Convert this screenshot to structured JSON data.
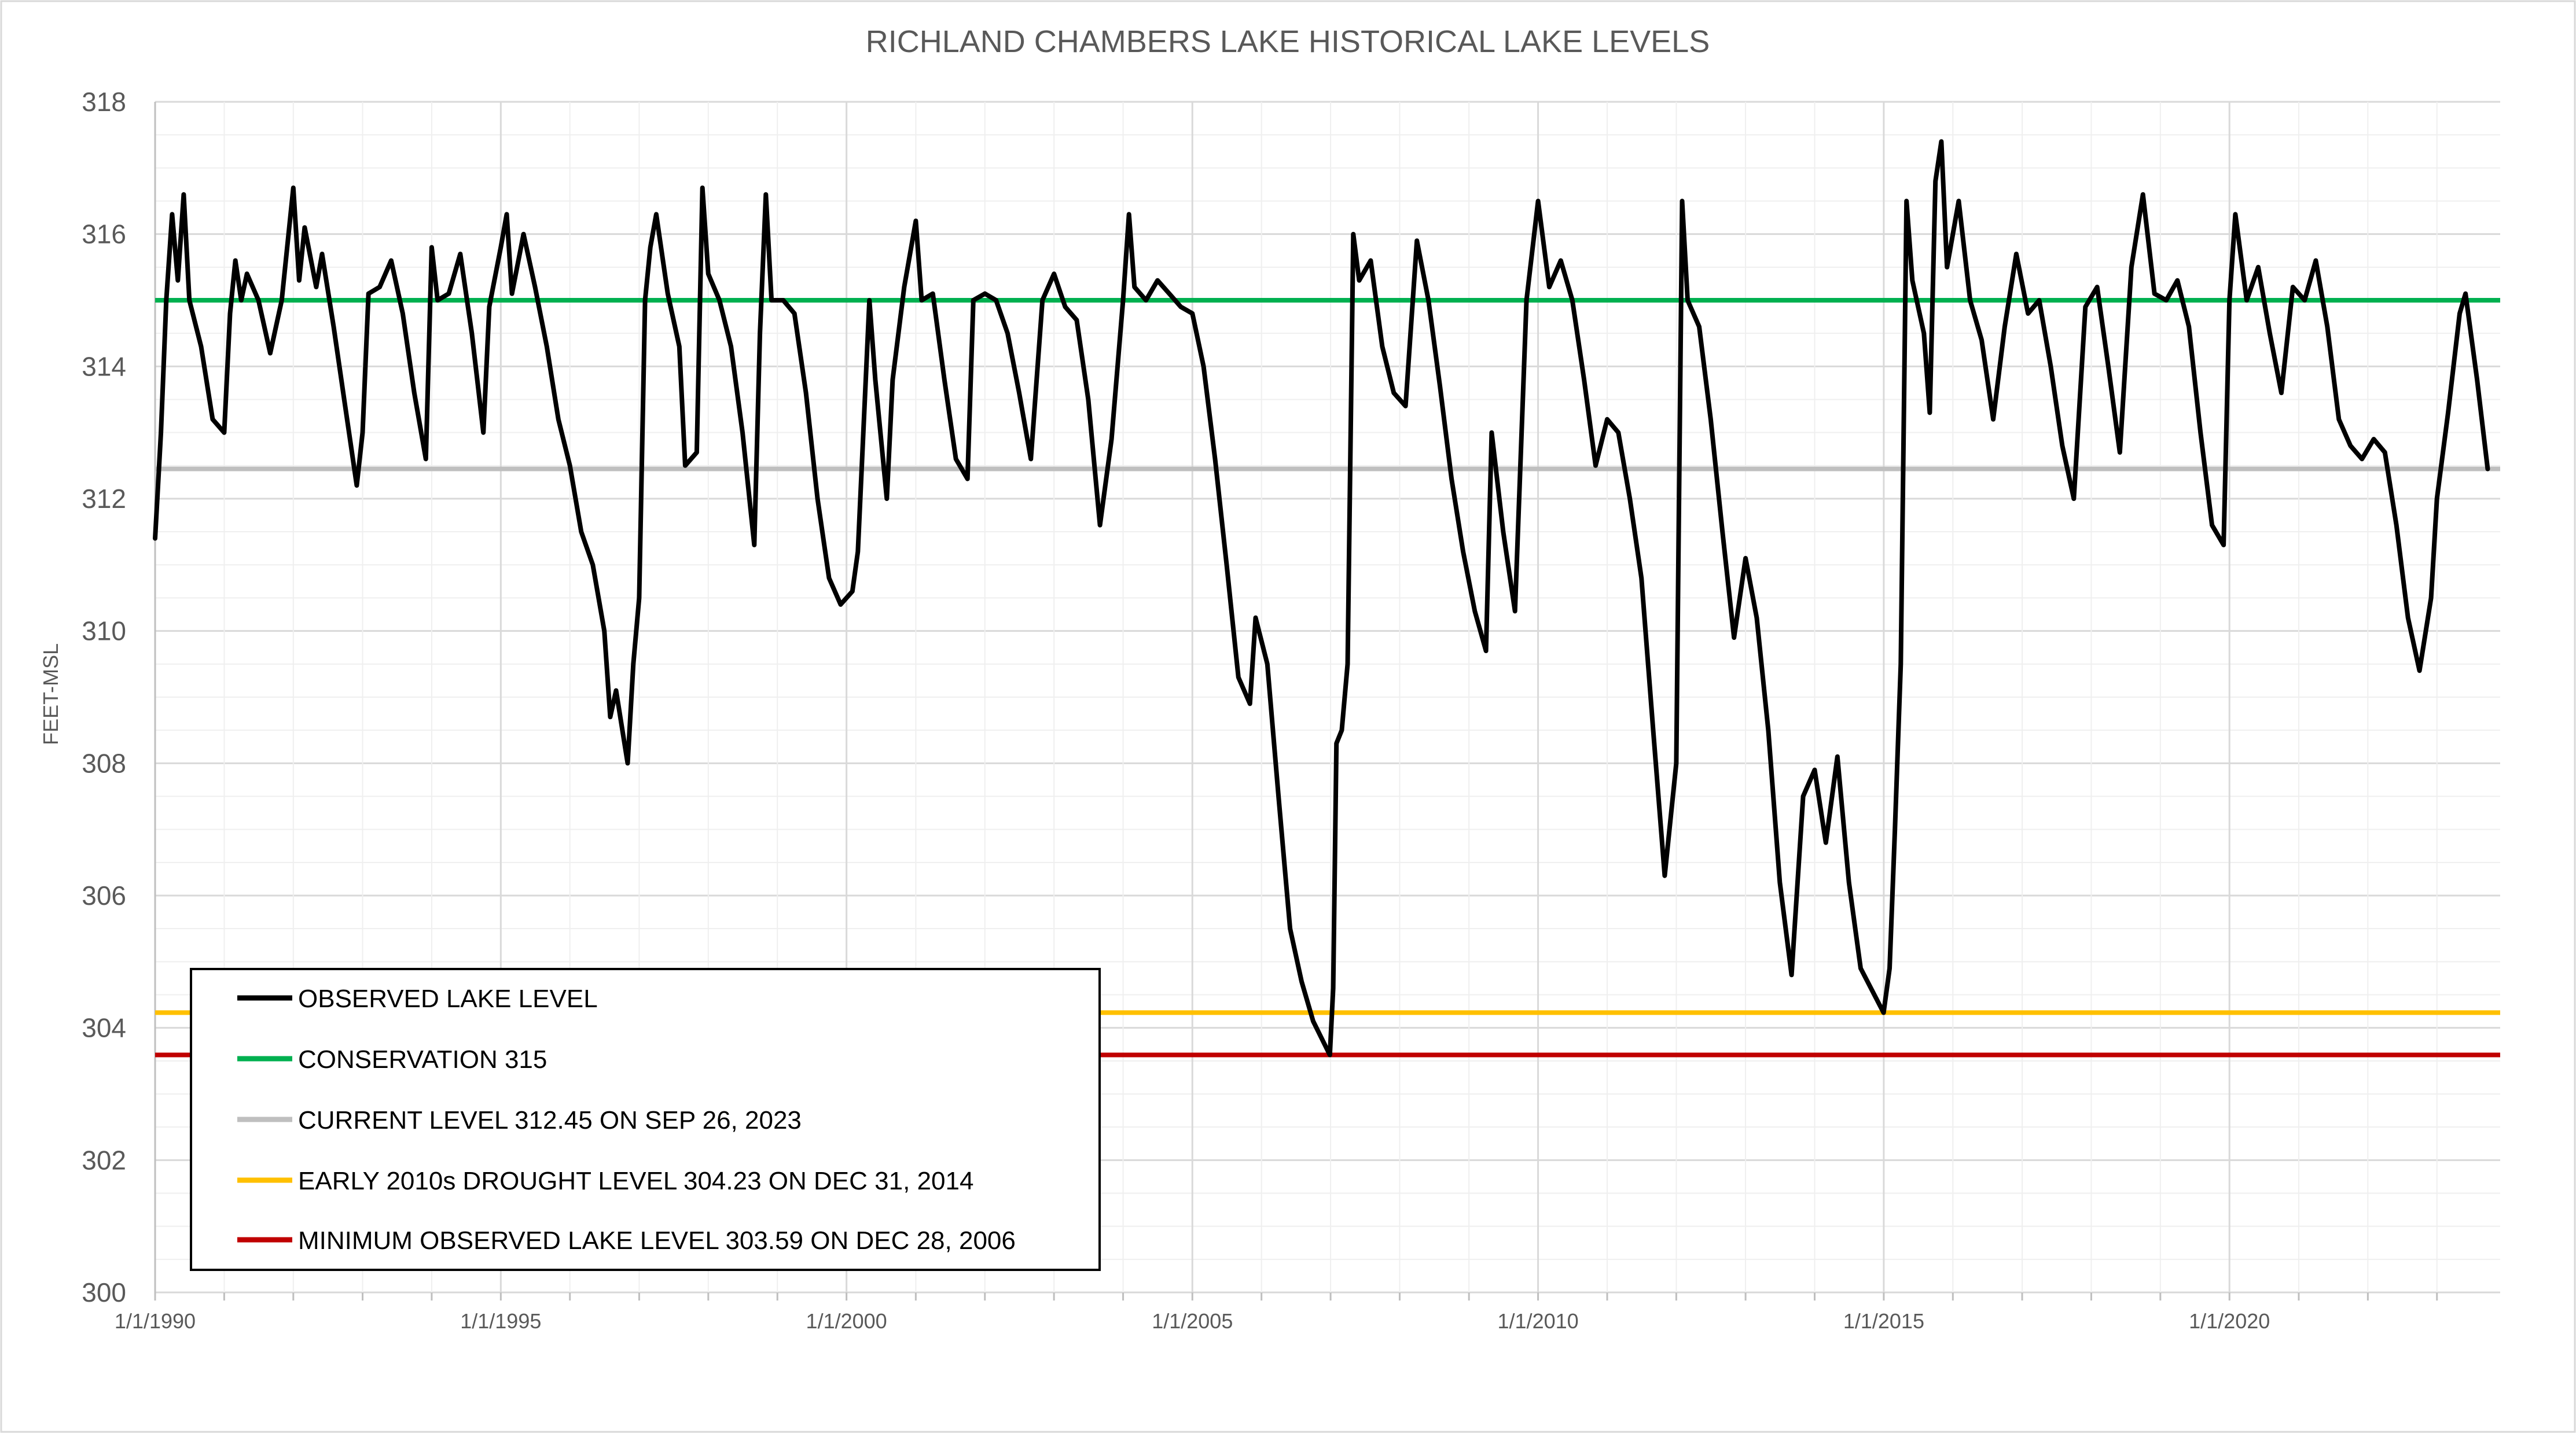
{
  "chart_data": {
    "type": "line",
    "title": "RICHLAND CHAMBERS LAKE HISTORICAL LAKE LEVELS",
    "xlabel": "",
    "ylabel": "FEET-MSL",
    "xlim": [
      "1990-01-01",
      "2023-12-01"
    ],
    "ylim": [
      300,
      318
    ],
    "y_ticks": [
      300,
      302,
      304,
      306,
      308,
      310,
      312,
      314,
      316,
      318
    ],
    "x_ticks": [
      {
        "date": "1990-01-01",
        "label": "1/1/1990"
      },
      {
        "date": "1995-01-01",
        "label": "1/1/1995"
      },
      {
        "date": "2000-01-01",
        "label": "1/1/2000"
      },
      {
        "date": "2005-01-01",
        "label": "1/1/2005"
      },
      {
        "date": "2010-01-01",
        "label": "1/1/2010"
      },
      {
        "date": "2015-01-01",
        "label": "1/1/2015"
      },
      {
        "date": "2020-01-01",
        "label": "1/1/2020"
      }
    ],
    "grid": true,
    "legend_position": "bottom-left",
    "series": [
      {
        "name": "OBSERVED LAKE LEVEL",
        "color": "#000000",
        "kind": "line",
        "points": [
          [
            "1990-01-01",
            311.4
          ],
          [
            "1990-02-01",
            313.0
          ],
          [
            "1990-03-01",
            315.0
          ],
          [
            "1990-04-01",
            316.3
          ],
          [
            "1990-05-01",
            315.3
          ],
          [
            "1990-06-01",
            316.6
          ],
          [
            "1990-07-01",
            315.0
          ],
          [
            "1990-09-01",
            314.3
          ],
          [
            "1990-11-01",
            313.2
          ],
          [
            "1991-01-01",
            313.0
          ],
          [
            "1991-02-01",
            314.8
          ],
          [
            "1991-03-01",
            315.6
          ],
          [
            "1991-04-01",
            315.0
          ],
          [
            "1991-05-01",
            315.4
          ],
          [
            "1991-07-01",
            315.0
          ],
          [
            "1991-09-01",
            314.2
          ],
          [
            "1991-11-01",
            315.0
          ],
          [
            "1992-01-01",
            316.7
          ],
          [
            "1992-02-01",
            315.3
          ],
          [
            "1992-03-01",
            316.1
          ],
          [
            "1992-05-01",
            315.2
          ],
          [
            "1992-06-01",
            315.7
          ],
          [
            "1992-08-01",
            314.6
          ],
          [
            "1992-10-01",
            313.4
          ],
          [
            "1992-12-01",
            312.2
          ],
          [
            "1993-01-01",
            313.0
          ],
          [
            "1993-02-01",
            315.1
          ],
          [
            "1993-04-01",
            315.2
          ],
          [
            "1993-06-01",
            315.6
          ],
          [
            "1993-08-01",
            314.8
          ],
          [
            "1993-10-01",
            313.6
          ],
          [
            "1993-12-01",
            312.6
          ],
          [
            "1994-01-01",
            315.8
          ],
          [
            "1994-02-01",
            315.0
          ],
          [
            "1994-04-01",
            315.1
          ],
          [
            "1994-06-01",
            315.7
          ],
          [
            "1994-08-01",
            314.5
          ],
          [
            "1994-10-01",
            313.0
          ],
          [
            "1994-11-01",
            314.9
          ],
          [
            "1995-01-01",
            315.8
          ],
          [
            "1995-02-01",
            316.3
          ],
          [
            "1995-03-01",
            315.1
          ],
          [
            "1995-05-01",
            316.0
          ],
          [
            "1995-07-01",
            315.2
          ],
          [
            "1995-09-01",
            314.3
          ],
          [
            "1995-11-01",
            313.2
          ],
          [
            "1996-01-01",
            312.5
          ],
          [
            "1996-03-01",
            311.5
          ],
          [
            "1996-05-01",
            311.0
          ],
          [
            "1996-07-01",
            310.0
          ],
          [
            "1996-08-01",
            308.7
          ],
          [
            "1996-09-01",
            309.1
          ],
          [
            "1996-11-01",
            308.0
          ],
          [
            "1996-12-01",
            309.5
          ],
          [
            "1997-01-01",
            310.5
          ],
          [
            "1997-02-01",
            315.0
          ],
          [
            "1997-03-01",
            315.8
          ],
          [
            "1997-04-01",
            316.3
          ],
          [
            "1997-06-01",
            315.1
          ],
          [
            "1997-08-01",
            314.3
          ],
          [
            "1997-09-01",
            312.5
          ],
          [
            "1997-11-01",
            312.7
          ],
          [
            "1997-12-01",
            316.7
          ],
          [
            "1998-01-01",
            315.4
          ],
          [
            "1998-03-01",
            315.0
          ],
          [
            "1998-05-01",
            314.3
          ],
          [
            "1998-07-01",
            313.0
          ],
          [
            "1998-09-01",
            311.3
          ],
          [
            "1998-10-01",
            314.5
          ],
          [
            "1998-11-01",
            316.6
          ],
          [
            "1998-12-01",
            315.0
          ],
          [
            "1999-02-01",
            315.0
          ],
          [
            "1999-04-01",
            314.8
          ],
          [
            "1999-06-01",
            313.6
          ],
          [
            "1999-08-01",
            312.0
          ],
          [
            "1999-10-01",
            310.8
          ],
          [
            "1999-12-01",
            310.4
          ],
          [
            "2000-02-01",
            310.6
          ],
          [
            "2000-03-01",
            311.2
          ],
          [
            "2000-05-01",
            315.0
          ],
          [
            "2000-06-01",
            313.8
          ],
          [
            "2000-08-01",
            312.0
          ],
          [
            "2000-09-01",
            313.8
          ],
          [
            "2000-11-01",
            315.2
          ],
          [
            "2001-01-01",
            316.2
          ],
          [
            "2001-02-01",
            315.0
          ],
          [
            "2001-04-01",
            315.1
          ],
          [
            "2001-06-01",
            313.8
          ],
          [
            "2001-08-01",
            312.6
          ],
          [
            "2001-10-01",
            312.3
          ],
          [
            "2001-11-01",
            315.0
          ],
          [
            "2002-01-01",
            315.1
          ],
          [
            "2002-03-01",
            315.0
          ],
          [
            "2002-05-01",
            314.5
          ],
          [
            "2002-07-01",
            313.6
          ],
          [
            "2002-09-01",
            312.6
          ],
          [
            "2002-11-01",
            315.0
          ],
          [
            "2003-01-01",
            315.4
          ],
          [
            "2003-03-01",
            314.9
          ],
          [
            "2003-05-01",
            314.7
          ],
          [
            "2003-07-01",
            313.5
          ],
          [
            "2003-09-01",
            311.6
          ],
          [
            "2003-11-01",
            312.9
          ],
          [
            "2004-01-01",
            315.0
          ],
          [
            "2004-02-01",
            316.3
          ],
          [
            "2004-03-01",
            315.2
          ],
          [
            "2004-05-01",
            315.0
          ],
          [
            "2004-07-01",
            315.3
          ],
          [
            "2004-09-01",
            315.1
          ],
          [
            "2004-11-01",
            314.9
          ],
          [
            "2005-01-01",
            314.8
          ],
          [
            "2005-03-01",
            314.0
          ],
          [
            "2005-05-01",
            312.6
          ],
          [
            "2005-07-01",
            311.0
          ],
          [
            "2005-09-01",
            309.3
          ],
          [
            "2005-11-01",
            308.9
          ],
          [
            "2005-12-01",
            310.2
          ],
          [
            "2006-02-01",
            309.5
          ],
          [
            "2006-04-01",
            307.5
          ],
          [
            "2006-06-01",
            305.5
          ],
          [
            "2006-08-01",
            304.7
          ],
          [
            "2006-10-01",
            304.1
          ],
          [
            "2006-12-28",
            303.59
          ],
          [
            "2007-01-15",
            304.6
          ],
          [
            "2007-02-01",
            308.3
          ],
          [
            "2007-03-01",
            308.5
          ],
          [
            "2007-04-01",
            309.5
          ],
          [
            "2007-05-01",
            316.0
          ],
          [
            "2007-06-01",
            315.3
          ],
          [
            "2007-08-01",
            315.6
          ],
          [
            "2007-10-01",
            314.3
          ],
          [
            "2007-12-01",
            313.6
          ],
          [
            "2008-02-01",
            313.4
          ],
          [
            "2008-04-01",
            315.9
          ],
          [
            "2008-06-01",
            315.0
          ],
          [
            "2008-08-01",
            313.7
          ],
          [
            "2008-10-01",
            312.3
          ],
          [
            "2008-12-01",
            311.2
          ],
          [
            "2009-02-01",
            310.3
          ],
          [
            "2009-04-01",
            309.7
          ],
          [
            "2009-05-01",
            313.0
          ],
          [
            "2009-07-01",
            311.5
          ],
          [
            "2009-09-01",
            310.3
          ],
          [
            "2009-11-01",
            315.0
          ],
          [
            "2010-01-01",
            316.5
          ],
          [
            "2010-03-01",
            315.2
          ],
          [
            "2010-05-01",
            315.6
          ],
          [
            "2010-07-01",
            315.0
          ],
          [
            "2010-09-01",
            313.8
          ],
          [
            "2010-11-01",
            312.5
          ],
          [
            "2011-01-01",
            313.2
          ],
          [
            "2011-03-01",
            313.0
          ],
          [
            "2011-05-01",
            312.0
          ],
          [
            "2011-07-01",
            310.8
          ],
          [
            "2011-09-01",
            308.5
          ],
          [
            "2011-11-01",
            306.3
          ],
          [
            "2012-01-01",
            308.0
          ],
          [
            "2012-02-01",
            316.5
          ],
          [
            "2012-03-01",
            315.0
          ],
          [
            "2012-05-01",
            314.6
          ],
          [
            "2012-07-01",
            313.2
          ],
          [
            "2012-09-01",
            311.5
          ],
          [
            "2012-11-01",
            309.9
          ],
          [
            "2013-01-01",
            311.1
          ],
          [
            "2013-03-01",
            310.2
          ],
          [
            "2013-05-01",
            308.5
          ],
          [
            "2013-07-01",
            306.2
          ],
          [
            "2013-09-01",
            304.8
          ],
          [
            "2013-11-01",
            307.5
          ],
          [
            "2014-01-01",
            307.9
          ],
          [
            "2014-03-01",
            306.8
          ],
          [
            "2014-05-01",
            308.1
          ],
          [
            "2014-07-01",
            306.2
          ],
          [
            "2014-09-01",
            304.9
          ],
          [
            "2014-12-31",
            304.23
          ],
          [
            "2015-02-01",
            304.9
          ],
          [
            "2015-03-01",
            307.0
          ],
          [
            "2015-04-01",
            309.5
          ],
          [
            "2015-05-01",
            316.5
          ],
          [
            "2015-06-01",
            315.3
          ],
          [
            "2015-08-01",
            314.5
          ],
          [
            "2015-09-01",
            313.3
          ],
          [
            "2015-10-01",
            316.8
          ],
          [
            "2015-11-01",
            317.4
          ],
          [
            "2015-12-01",
            315.5
          ],
          [
            "2016-02-01",
            316.5
          ],
          [
            "2016-04-01",
            315.0
          ],
          [
            "2016-06-01",
            314.4
          ],
          [
            "2016-08-01",
            313.2
          ],
          [
            "2016-10-01",
            314.6
          ],
          [
            "2016-12-01",
            315.7
          ],
          [
            "2017-02-01",
            314.8
          ],
          [
            "2017-04-01",
            315.0
          ],
          [
            "2017-06-01",
            314.0
          ],
          [
            "2017-08-01",
            312.8
          ],
          [
            "2017-10-01",
            312.0
          ],
          [
            "2017-12-01",
            314.9
          ],
          [
            "2018-02-01",
            315.2
          ],
          [
            "2018-04-01",
            314.0
          ],
          [
            "2018-06-01",
            312.7
          ],
          [
            "2018-08-01",
            315.5
          ],
          [
            "2018-10-01",
            316.6
          ],
          [
            "2018-12-01",
            315.1
          ],
          [
            "2019-02-01",
            315.0
          ],
          [
            "2019-04-01",
            315.3
          ],
          [
            "2019-06-01",
            314.6
          ],
          [
            "2019-08-01",
            313.0
          ],
          [
            "2019-10-01",
            311.6
          ],
          [
            "2019-12-01",
            311.3
          ],
          [
            "2020-01-01",
            315.0
          ],
          [
            "2020-02-01",
            316.3
          ],
          [
            "2020-04-01",
            315.0
          ],
          [
            "2020-06-01",
            315.5
          ],
          [
            "2020-08-01",
            314.5
          ],
          [
            "2020-10-01",
            313.6
          ],
          [
            "2020-12-01",
            315.2
          ],
          [
            "2021-02-01",
            315.0
          ],
          [
            "2021-04-01",
            315.6
          ],
          [
            "2021-06-01",
            314.6
          ],
          [
            "2021-08-01",
            313.2
          ],
          [
            "2021-10-01",
            312.8
          ],
          [
            "2021-12-01",
            312.6
          ],
          [
            "2022-02-01",
            312.9
          ],
          [
            "2022-04-01",
            312.7
          ],
          [
            "2022-06-01",
            311.6
          ],
          [
            "2022-08-01",
            310.2
          ],
          [
            "2022-10-01",
            309.4
          ],
          [
            "2022-12-01",
            310.5
          ],
          [
            "2023-01-01",
            312.0
          ],
          [
            "2023-03-01",
            313.3
          ],
          [
            "2023-05-01",
            314.8
          ],
          [
            "2023-06-01",
            315.1
          ],
          [
            "2023-08-01",
            313.8
          ],
          [
            "2023-09-26",
            312.45
          ]
        ]
      },
      {
        "name": "CONSERVATION 315",
        "color": "#00B050",
        "kind": "hline",
        "value": 315
      },
      {
        "name": "CURRENT LEVEL 312.45 ON SEP 26, 2023",
        "color": "#BFBFBF",
        "kind": "hline",
        "value": 312.45
      },
      {
        "name": "EARLY 2010s DROUGHT LEVEL 304.23 ON DEC 31, 2014",
        "color": "#FFC000",
        "kind": "hline",
        "value": 304.23
      },
      {
        "name": "MINIMUM OBSERVED LAKE LEVEL 303.59 ON DEC 28, 2006",
        "color": "#C00000",
        "kind": "hline",
        "value": 303.59
      }
    ]
  }
}
